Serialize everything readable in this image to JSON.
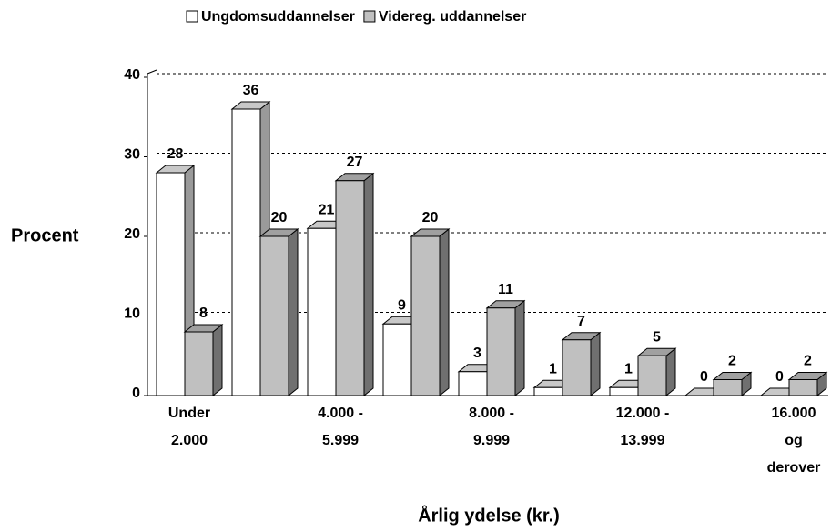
{
  "chart_data": {
    "type": "bar3d",
    "x_label": "Årlig ydelse (kr.)",
    "y_label": "Procent",
    "categories": [
      "Under\n2.000",
      null,
      "4.000 -\n5.999",
      null,
      "8.000 -\n9.999",
      null,
      "12.000 -\n13.999",
      null,
      "16.000\nog\nderover"
    ],
    "series": [
      {
        "name": "Ungdomsuddannelser",
        "color": "#ffffff",
        "values": [
          28,
          36,
          21,
          9,
          3,
          1,
          1,
          0,
          0
        ]
      },
      {
        "name": "Videreg. uddannelser",
        "color": "#c0c0c0",
        "values": [
          8,
          20,
          27,
          20,
          11,
          7,
          5,
          2,
          2
        ]
      }
    ],
    "ylim": [
      0,
      40
    ],
    "yticks": [
      0,
      10,
      20,
      30,
      40
    ],
    "grid": true,
    "legend": "top"
  }
}
